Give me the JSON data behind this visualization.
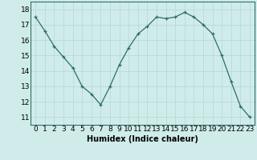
{
  "x": [
    0,
    1,
    2,
    3,
    4,
    5,
    6,
    7,
    8,
    9,
    10,
    11,
    12,
    13,
    14,
    15,
    16,
    17,
    18,
    19,
    20,
    21,
    22,
    23
  ],
  "y": [
    17.5,
    16.6,
    15.6,
    14.9,
    14.2,
    13.0,
    12.5,
    11.8,
    13.0,
    14.4,
    15.5,
    16.4,
    16.9,
    17.5,
    17.4,
    17.5,
    17.8,
    17.5,
    17.0,
    16.4,
    15.0,
    13.3,
    11.7,
    11.0
  ],
  "xlabel": "Humidex (Indice chaleur)",
  "ylim": [
    10.5,
    18.5
  ],
  "xlim": [
    -0.5,
    23.5
  ],
  "yticks": [
    11,
    12,
    13,
    14,
    15,
    16,
    17,
    18
  ],
  "xtick_labels": [
    "0",
    "1",
    "2",
    "3",
    "4",
    "5",
    "6",
    "7",
    "8",
    "9",
    "10",
    "11",
    "12",
    "13",
    "14",
    "15",
    "16",
    "17",
    "18",
    "19",
    "20",
    "21",
    "22",
    "23"
  ],
  "line_color": "#2e6e65",
  "marker": "+",
  "bg_color": "#d0ecea",
  "grid_color": "#b8dbd8",
  "xlabel_fontsize": 7,
  "tick_fontsize": 6.5
}
